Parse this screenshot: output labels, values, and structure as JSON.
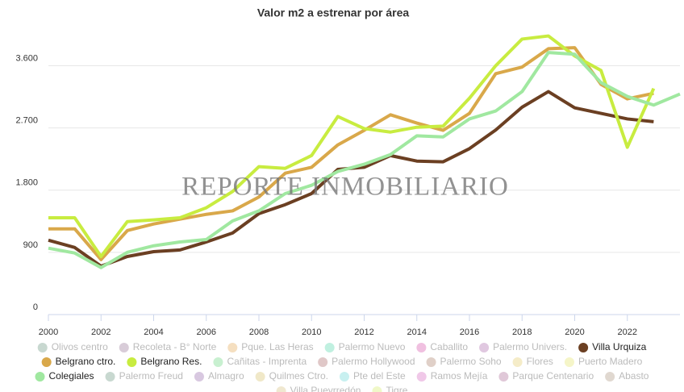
{
  "chart_data": {
    "type": "line",
    "title": "Valor m2 a estrenar por área",
    "watermark": "REPORTE INMOBILIARIO",
    "x": [
      2000,
      2001,
      2002,
      2003,
      2004,
      2005,
      2006,
      2007,
      2008,
      2009,
      2010,
      2011,
      2012,
      2013,
      2014,
      2015,
      2016,
      2017,
      2018,
      2019,
      2020,
      2021,
      2022,
      2023,
      2024
    ],
    "xlim": [
      2000,
      2024
    ],
    "xticks": [
      2000,
      2002,
      2004,
      2006,
      2008,
      2010,
      2012,
      2014,
      2016,
      2018,
      2020,
      2022
    ],
    "ylim": [
      0,
      4200
    ],
    "yticks": [
      0,
      {
        "value": 900,
        "label": "900"
      },
      {
        "value": 1800,
        "label": "1.800"
      },
      {
        "value": 2700,
        "label": "2.700"
      },
      {
        "value": 3600,
        "label": "3.600"
      }
    ],
    "grid": true,
    "series": [
      {
        "name": "Olivos centro",
        "color": "#c8d8d0",
        "hidden": true
      },
      {
        "name": "Recoleta - B° Norte",
        "color": "#d8ccd8",
        "hidden": true
      },
      {
        "name": "Pque. Las Heras",
        "color": "#f5dfc0",
        "hidden": true
      },
      {
        "name": "Palermo Nuevo",
        "color": "#c0f0e0",
        "hidden": true
      },
      {
        "name": "Caballito",
        "color": "#f0c0e0",
        "hidden": true
      },
      {
        "name": "Palermo Univers.",
        "color": "#e0c8e0",
        "hidden": true
      },
      {
        "name": "Villa Urquiza",
        "color": "#6b3f22",
        "values": [
          1075,
          970,
          700,
          840,
          910,
          935,
          1050,
          1180,
          1460,
          1590,
          1750,
          2100,
          2130,
          2300,
          2220,
          2210,
          2400,
          2670,
          3000,
          3225,
          2990,
          2910,
          2830,
          2790,
          null
        ]
      },
      {
        "name": "Belgrano ctro.",
        "color": "#d9a84a",
        "values": [
          1240,
          1240,
          795,
          1215,
          1310,
          1380,
          1450,
          1500,
          1700,
          2045,
          2130,
          2455,
          2665,
          2890,
          2770,
          2665,
          2910,
          3485,
          3580,
          3845,
          3860,
          3330,
          3120,
          3200,
          null
        ]
      },
      {
        "name": "Belgrano Res.",
        "color": "#c8ec40",
        "values": [
          1400,
          1400,
          840,
          1345,
          1370,
          1400,
          1545,
          1780,
          2140,
          2115,
          2300,
          2865,
          2690,
          2640,
          2710,
          2725,
          3130,
          3600,
          3985,
          4030,
          3740,
          3530,
          2420,
          3270,
          null
        ]
      },
      {
        "name": "Cañitas - Imprenta",
        "color": "#c8f0d0",
        "hidden": true
      },
      {
        "name": "Palermo Hollywood",
        "color": "#e0c8c8",
        "hidden": true
      },
      {
        "name": "Palermo Soho",
        "color": "#e0d0c8",
        "hidden": true
      },
      {
        "name": "Flores",
        "color": "#f5ecc8",
        "hidden": true
      },
      {
        "name": "Puerto Madero",
        "color": "#f5f5c8",
        "hidden": true
      },
      {
        "name": "Colegiales",
        "color": "#a0e8a0",
        "values": [
          960,
          890,
          680,
          900,
          995,
          1050,
          1085,
          1355,
          1500,
          1750,
          1870,
          2070,
          2175,
          2315,
          2585,
          2570,
          2830,
          2945,
          3225,
          3790,
          3765,
          3355,
          3155,
          3030,
          3190
        ]
      },
      {
        "name": "Palermo Freud",
        "color": "#c8d8d0",
        "hidden": true
      },
      {
        "name": "Almagro",
        "color": "#d8c8e0",
        "hidden": true
      },
      {
        "name": "Quilmes Ctro.",
        "color": "#f0e8c8",
        "hidden": true
      },
      {
        "name": "Pte del Este",
        "color": "#c8f0f0",
        "hidden": true
      },
      {
        "name": "Ramos Mejía",
        "color": "#f0c8e8",
        "hidden": true
      },
      {
        "name": "Parque Centenario",
        "color": "#e0c8d8",
        "hidden": true
      },
      {
        "name": "Abasto",
        "color": "#e0d8d0",
        "hidden": true
      },
      {
        "name": "Villa Pueyrredón",
        "color": "#f0e8d0",
        "hidden": true
      },
      {
        "name": "Tigre",
        "color": "#f0f8c8",
        "hidden": true
      }
    ]
  }
}
